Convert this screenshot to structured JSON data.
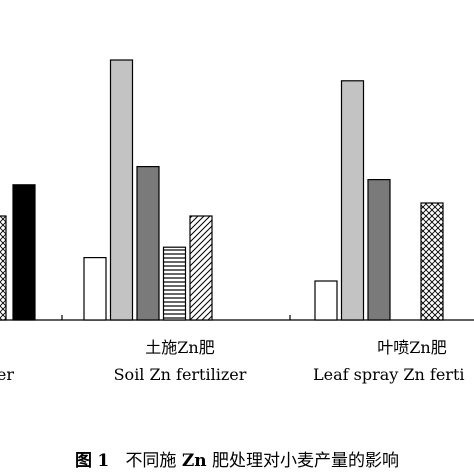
{
  "chart_data": {
    "type": "bar",
    "title": "",
    "xlabel": "",
    "ylabel": "",
    "ylim": [
      0,
      100
    ],
    "groups": [
      {
        "label_cn": "",
        "label_en": "er",
        "bars": [
          {
            "pattern": "crosshatch",
            "value": 40
          },
          {
            "pattern": "black",
            "value": 52
          }
        ]
      },
      {
        "label_cn": "土施Zn肥",
        "label_en": "Soil Zn fertilizer",
        "bars": [
          {
            "pattern": "white",
            "value": 24
          },
          {
            "pattern": "lightgray",
            "value": 100
          },
          {
            "pattern": "darkgray",
            "value": 59
          },
          {
            "pattern": "horizontal",
            "value": 28
          },
          {
            "pattern": "diagonal",
            "value": 40
          }
        ]
      },
      {
        "label_cn": "叶喷Zn肥",
        "label_en": "Leaf spray Zn ferti",
        "bars": [
          {
            "pattern": "white",
            "value": 15
          },
          {
            "pattern": "lightgray",
            "value": 92
          },
          {
            "pattern": "darkgray",
            "value": 54
          },
          {
            "pattern": "crosshatch",
            "value": 45
          }
        ]
      }
    ]
  },
  "caption": {
    "prefix": "图",
    "number": "1",
    "text_a": "不同施",
    "element": "Zn",
    "text_b": "肥处理对小麦产量的影响"
  }
}
